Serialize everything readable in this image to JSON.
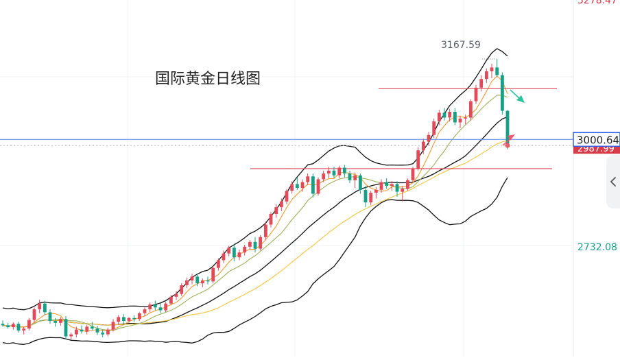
{
  "title": "国际黄金日线图",
  "high_annotation": "3167.59",
  "colors": {
    "up": "#e04a59",
    "down": "#17a085",
    "grid": "#eef0f3",
    "bollinger": "#111111",
    "ma_orange": "#ee9a32",
    "ma_green": "#9bb05a",
    "ma_yellow": "#f2c94c",
    "current_line": "#6e8ff0",
    "resistance": "#e04a59",
    "arrow_down": "#29c49a",
    "arrow_up": "#ee5a6a"
  },
  "price_scale": {
    "labels": [
      "3278.47",
      "2732.08"
    ],
    "current_price": "3000.64",
    "hidden_price": "2987.99",
    "current_color": "#2f5fe6",
    "hidden_color": "#d83c4b"
  },
  "icons": {
    "collapse": "chevron-left-icon"
  },
  "chart_data": {
    "type": "candlestick",
    "title": "国际黄金日线图",
    "ylim": [
      2550,
      3290
    ],
    "y_labels": [
      3278.47,
      2732.08
    ],
    "max_label": 3167.59,
    "current_price": 3000.64,
    "current_hidden": 2987.99,
    "resistance": 3106,
    "support": 2940,
    "candles": [
      [
        2618,
        2625,
        2612,
        2615
      ],
      [
        2615,
        2620,
        2608,
        2611
      ],
      [
        2611,
        2621,
        2606,
        2618
      ],
      [
        2618,
        2622,
        2600,
        2604
      ],
      [
        2604,
        2612,
        2596,
        2608
      ],
      [
        2608,
        2630,
        2604,
        2626
      ],
      [
        2626,
        2652,
        2620,
        2648
      ],
      [
        2648,
        2668,
        2640,
        2660
      ],
      [
        2660,
        2666,
        2636,
        2642
      ],
      [
        2642,
        2648,
        2618,
        2624
      ],
      [
        2624,
        2630,
        2612,
        2620
      ],
      [
        2620,
        2632,
        2614,
        2628
      ],
      [
        2628,
        2634,
        2586,
        2592
      ],
      [
        2592,
        2600,
        2585,
        2596
      ],
      [
        2596,
        2612,
        2590,
        2606
      ],
      [
        2606,
        2615,
        2598,
        2602
      ],
      [
        2602,
        2616,
        2596,
        2612
      ],
      [
        2612,
        2622,
        2604,
        2608
      ],
      [
        2608,
        2614,
        2595,
        2600
      ],
      [
        2600,
        2606,
        2590,
        2596
      ],
      [
        2596,
        2610,
        2592,
        2606
      ],
      [
        2606,
        2628,
        2602,
        2622
      ],
      [
        2622,
        2636,
        2616,
        2632
      ],
      [
        2632,
        2638,
        2618,
        2624
      ],
      [
        2624,
        2632,
        2620,
        2630
      ],
      [
        2630,
        2636,
        2622,
        2628
      ],
      [
        2628,
        2642,
        2624,
        2640
      ],
      [
        2640,
        2652,
        2634,
        2648
      ],
      [
        2648,
        2662,
        2642,
        2658
      ],
      [
        2658,
        2666,
        2646,
        2652
      ],
      [
        2652,
        2660,
        2640,
        2646
      ],
      [
        2646,
        2664,
        2642,
        2660
      ],
      [
        2660,
        2678,
        2656,
        2674
      ],
      [
        2674,
        2686,
        2668,
        2680
      ],
      [
        2680,
        2702,
        2676,
        2698
      ],
      [
        2698,
        2714,
        2692,
        2708
      ],
      [
        2708,
        2722,
        2700,
        2716
      ],
      [
        2716,
        2722,
        2696,
        2702
      ],
      [
        2702,
        2712,
        2694,
        2708
      ],
      [
        2708,
        2716,
        2700,
        2706
      ],
      [
        2706,
        2738,
        2702,
        2734
      ],
      [
        2734,
        2754,
        2728,
        2750
      ],
      [
        2750,
        2770,
        2744,
        2764
      ],
      [
        2764,
        2780,
        2758,
        2776
      ],
      [
        2776,
        2784,
        2748,
        2756
      ],
      [
        2756,
        2772,
        2750,
        2766
      ],
      [
        2766,
        2782,
        2760,
        2778
      ],
      [
        2778,
        2792,
        2772,
        2788
      ],
      [
        2788,
        2798,
        2766,
        2774
      ],
      [
        2774,
        2802,
        2770,
        2798
      ],
      [
        2798,
        2830,
        2792,
        2824
      ],
      [
        2824,
        2850,
        2818,
        2846
      ],
      [
        2846,
        2866,
        2838,
        2860
      ],
      [
        2860,
        2878,
        2852,
        2872
      ],
      [
        2872,
        2898,
        2866,
        2894
      ],
      [
        2894,
        2914,
        2888,
        2908
      ],
      [
        2908,
        2922,
        2896,
        2900
      ],
      [
        2900,
        2918,
        2892,
        2912
      ],
      [
        2912,
        2930,
        2906,
        2924
      ],
      [
        2924,
        2930,
        2880,
        2888
      ],
      [
        2888,
        2922,
        2884,
        2918
      ],
      [
        2918,
        2936,
        2912,
        2930
      ],
      [
        2930,
        2944,
        2920,
        2936
      ],
      [
        2936,
        2944,
        2920,
        2926
      ],
      [
        2926,
        2946,
        2920,
        2942
      ],
      [
        2942,
        2948,
        2922,
        2930
      ],
      [
        2930,
        2936,
        2910,
        2916
      ],
      [
        2916,
        2932,
        2900,
        2926
      ],
      [
        2926,
        2930,
        2888,
        2896
      ],
      [
        2896,
        2904,
        2860,
        2870
      ],
      [
        2870,
        2894,
        2864,
        2890
      ],
      [
        2890,
        2902,
        2878,
        2896
      ],
      [
        2896,
        2918,
        2890,
        2912
      ],
      [
        2912,
        2920,
        2898,
        2904
      ],
      [
        2904,
        2914,
        2894,
        2908
      ],
      [
        2908,
        2914,
        2882,
        2892
      ],
      [
        2892,
        2904,
        2872,
        2898
      ],
      [
        2898,
        2920,
        2894,
        2916
      ],
      [
        2916,
        2944,
        2912,
        2940
      ],
      [
        2940,
        2984,
        2936,
        2978
      ],
      [
        2978,
        3002,
        2970,
        2996
      ],
      [
        2996,
        3016,
        2988,
        3010
      ],
      [
        3010,
        3044,
        3004,
        3038
      ],
      [
        3038,
        3062,
        3030,
        3056
      ],
      [
        3056,
        3066,
        3040,
        3046
      ],
      [
        3046,
        3064,
        3038,
        3058
      ],
      [
        3058,
        3066,
        3030,
        3036
      ],
      [
        3036,
        3050,
        3024,
        3044
      ],
      [
        3044,
        3052,
        3032,
        3046
      ],
      [
        3046,
        3084,
        3040,
        3080
      ],
      [
        3080,
        3114,
        3074,
        3108
      ],
      [
        3108,
        3134,
        3100,
        3126
      ],
      [
        3126,
        3148,
        3118,
        3142
      ],
      [
        3142,
        3158,
        3128,
        3150
      ],
      [
        3150,
        3167.59,
        3130,
        3134
      ],
      [
        3134,
        3140,
        3052,
        3060
      ],
      [
        3060,
        3062,
        2980,
        2990
      ]
    ]
  }
}
